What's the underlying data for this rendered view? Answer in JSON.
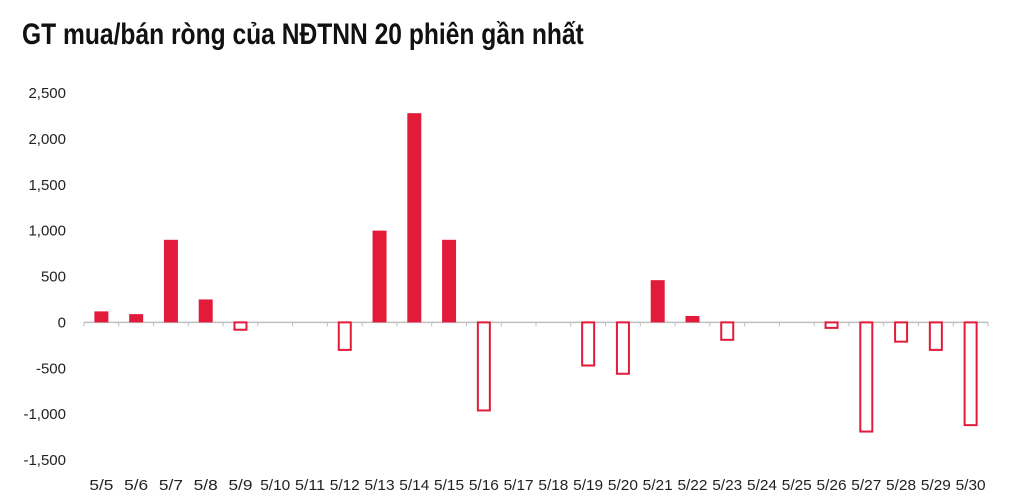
{
  "chart_data": {
    "type": "bar",
    "title": "GT mua/bán ròng của NĐTNN 20 phiên gần nhất",
    "xlabel": "",
    "ylabel": "",
    "ylim": [
      -1500,
      2500
    ],
    "yticks": [
      2500,
      2000,
      1500,
      1000,
      500,
      0,
      -500,
      -1000,
      -1500
    ],
    "ytick_labels": [
      "2,500",
      "2,000",
      "1,500",
      "1,000",
      "500",
      "0",
      "-500",
      "-1,000",
      "-1,500"
    ],
    "categories": [
      "5/5",
      "5/6",
      "5/7",
      "5/8",
      "5/9",
      "5/10",
      "5/11",
      "5/12",
      "5/13",
      "5/14",
      "5/15",
      "5/16",
      "5/17",
      "5/18",
      "5/19",
      "5/20",
      "5/21",
      "5/22",
      "5/23",
      "5/24",
      "5/25",
      "5/26",
      "5/27",
      "5/28",
      "5/29",
      "5/30"
    ],
    "values": [
      120,
      90,
      900,
      250,
      -80,
      null,
      null,
      -300,
      1000,
      2280,
      900,
      -960,
      null,
      null,
      -470,
      -560,
      460,
      70,
      -190,
      null,
      null,
      -60,
      -1190,
      -210,
      -300,
      -1120
    ],
    "positive_color": "#e31b3b",
    "negative_style": "outline",
    "grid": false,
    "legend": "none"
  }
}
